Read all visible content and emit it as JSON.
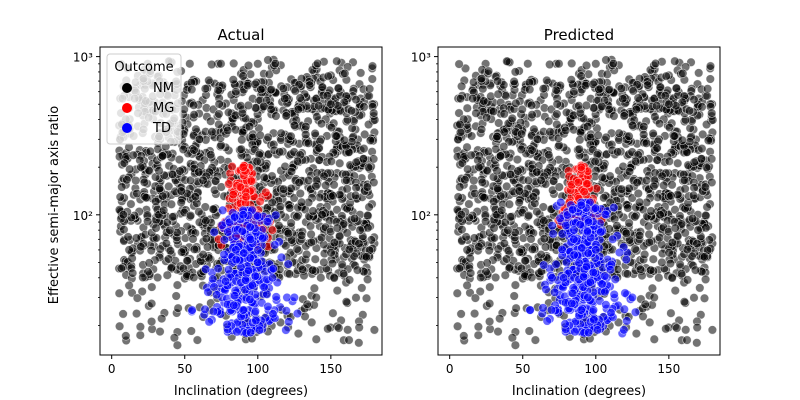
{
  "chart_data": [
    {
      "type": "scatter",
      "title": "Actual",
      "xlabel": "Inclination (degrees)",
      "ylabel": "Effective semi-major axis ratio",
      "xlim": [
        -8,
        185
      ],
      "ylim": [
        13,
        1150
      ],
      "yscale": "log",
      "x_ticks": [
        0,
        50,
        100,
        150
      ],
      "y_ticks": [
        100,
        1000
      ],
      "y_tick_labels": [
        "10²",
        "10³"
      ],
      "legend": {
        "title": "Outcome",
        "position": "top-left",
        "entries": [
          "NM",
          "MG",
          "TD"
        ]
      },
      "grid": false,
      "series": [
        {
          "name": "NM",
          "color": "#000000",
          "opacity": 0.55,
          "approx_points": 2600,
          "x_range": [
            5,
            180
          ],
          "y_range": [
            15,
            950
          ],
          "sample": [
            [
              8,
              100
            ],
            [
              12,
              60
            ],
            [
              20,
              200
            ],
            [
              30,
              450
            ],
            [
              45,
              800
            ],
            [
              60,
              300
            ],
            [
              75,
              150
            ],
            [
              85,
              600
            ],
            [
              100,
              900
            ],
            [
              115,
              250
            ],
            [
              130,
              120
            ],
            [
              150,
              500
            ],
            [
              170,
              80
            ],
            [
              175,
              150
            ],
            [
              45,
              15
            ],
            [
              140,
              30
            ]
          ]
        },
        {
          "name": "MG",
          "color": "#ff0000",
          "opacity": 0.6,
          "approx_points": 160,
          "x_range": [
            70,
            115
          ],
          "y_range": [
            60,
            210
          ],
          "sample": [
            [
              90,
              200
            ],
            [
              88,
              150
            ],
            [
              92,
              130
            ],
            [
              80,
              110
            ],
            [
              100,
              100
            ],
            [
              85,
              90
            ],
            [
              95,
              80
            ],
            [
              105,
              95
            ],
            [
              75,
              85
            ],
            [
              110,
              80
            ]
          ]
        },
        {
          "name": "TD",
          "color": "#0000ff",
          "opacity": 0.6,
          "approx_points": 330,
          "x_range": [
            50,
            130
          ],
          "y_range": [
            18,
            110
          ],
          "sample": [
            [
              90,
              100
            ],
            [
              95,
              70
            ],
            [
              85,
              60
            ],
            [
              100,
              50
            ],
            [
              80,
              45
            ],
            [
              110,
              40
            ],
            [
              70,
              35
            ],
            [
              120,
              30
            ],
            [
              90,
              25
            ],
            [
              95,
              18
            ],
            [
              55,
              25
            ],
            [
              125,
              30
            ]
          ]
        }
      ]
    },
    {
      "type": "scatter",
      "title": "Predicted",
      "xlabel": "Inclination (degrees)",
      "ylabel": "",
      "xlim": [
        -8,
        185
      ],
      "ylim": [
        13,
        1150
      ],
      "yscale": "log",
      "x_ticks": [
        0,
        50,
        100,
        150
      ],
      "y_ticks": [
        100,
        1000
      ],
      "y_tick_labels": [
        "10²",
        "10³"
      ],
      "grid": false,
      "series": [
        {
          "name": "NM",
          "color": "#000000",
          "opacity": 0.55,
          "approx_points": 2600,
          "x_range": [
            5,
            180
          ],
          "y_range": [
            15,
            950
          ],
          "sample": [
            [
              8,
              100
            ],
            [
              12,
              60
            ],
            [
              20,
              200
            ],
            [
              30,
              450
            ],
            [
              45,
              800
            ],
            [
              60,
              300
            ],
            [
              75,
              150
            ],
            [
              85,
              600
            ],
            [
              100,
              900
            ],
            [
              115,
              250
            ],
            [
              130,
              120
            ],
            [
              150,
              500
            ],
            [
              170,
              80
            ],
            [
              175,
              150
            ],
            [
              45,
              15
            ],
            [
              140,
              30
            ]
          ]
        },
        {
          "name": "MG",
          "color": "#ff0000",
          "opacity": 0.6,
          "approx_points": 110,
          "x_range": [
            72,
            110
          ],
          "y_range": [
            85,
            210
          ],
          "sample": [
            [
              90,
              200
            ],
            [
              88,
              160
            ],
            [
              92,
              140
            ],
            [
              82,
              120
            ],
            [
              98,
              110
            ],
            [
              86,
              100
            ],
            [
              78,
              95
            ],
            [
              104,
              105
            ]
          ]
        },
        {
          "name": "TD",
          "color": "#0000ff",
          "opacity": 0.6,
          "approx_points": 380,
          "x_range": [
            50,
            130
          ],
          "y_range": [
            18,
            120
          ],
          "sample": [
            [
              90,
              115
            ],
            [
              95,
              90
            ],
            [
              85,
              70
            ],
            [
              100,
              60
            ],
            [
              80,
              50
            ],
            [
              110,
              45
            ],
            [
              70,
              40
            ],
            [
              120,
              32
            ],
            [
              90,
              25
            ],
            [
              95,
              18
            ],
            [
              55,
              25
            ],
            [
              125,
              30
            ]
          ]
        }
      ]
    }
  ]
}
